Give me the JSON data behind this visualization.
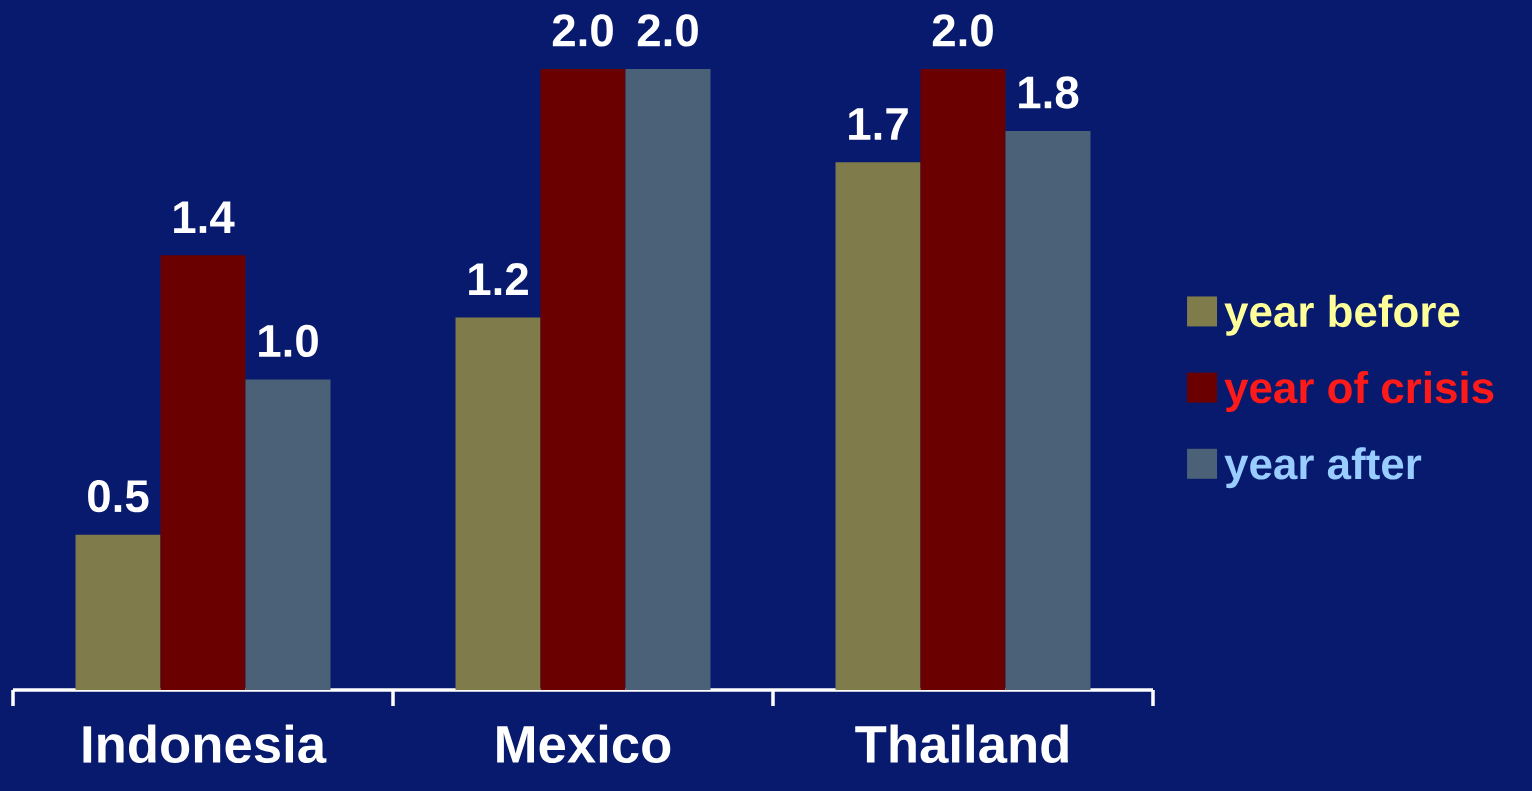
{
  "chart_data": {
    "type": "bar",
    "categories": [
      "Indonesia",
      "Mexico",
      "Thailand"
    ],
    "series": [
      {
        "name": "year before",
        "color": "#7f7b4a",
        "values": [
          0.5,
          1.2,
          1.7
        ],
        "value_labels": [
          "0.5",
          "1.2",
          "1.7"
        ]
      },
      {
        "name": "year of crisis",
        "color": "#6b0000",
        "values": [
          1.4,
          2.0,
          2.0
        ],
        "value_labels": [
          "1.4",
          "2.0",
          "2.0"
        ]
      },
      {
        "name": "year after",
        "color": "#4b6178",
        "values": [
          1.0,
          2.0,
          1.8
        ],
        "value_labels": [
          "1.0",
          "2.0",
          "1.8"
        ]
      }
    ],
    "legend": "right"
  }
}
